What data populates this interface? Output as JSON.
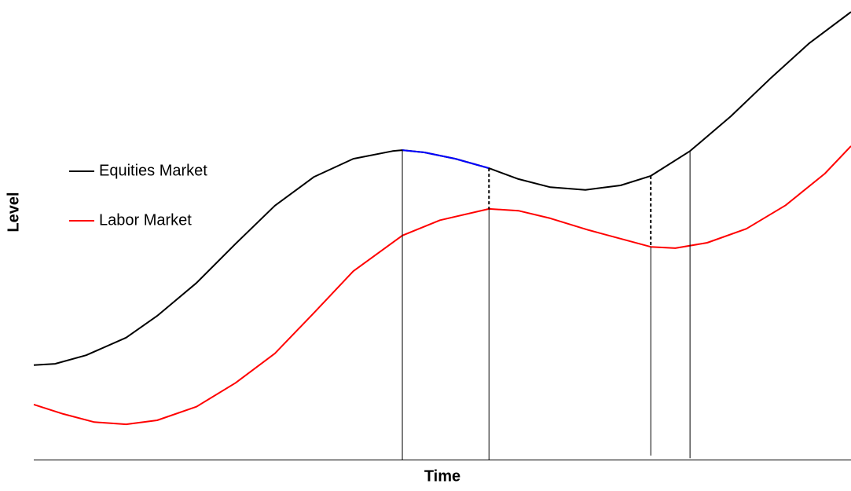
{
  "chart_data": {
    "type": "line",
    "x_label": "Time",
    "y_label": "Level",
    "xlim": [
      0,
      100
    ],
    "ylim": [
      0,
      100
    ],
    "legend": "center-left",
    "series": [
      {
        "name": "Equities Market",
        "color": "#000000",
        "x": [
          0,
          2.6,
          6.4,
          11.3,
          15.1,
          19.9,
          24.7,
          29.5,
          34.3,
          39.1,
          43.9,
          45.1,
          47.8,
          51.6,
          55.7,
          59.3,
          63.2,
          67.5,
          71.8,
          75.5,
          80.3,
          85.3,
          90.1,
          94.9,
          100
        ],
        "values": [
          20.9,
          21.2,
          23.1,
          27.0,
          31.8,
          39.1,
          47.8,
          56.2,
          62.6,
          66.6,
          68.3,
          68.5,
          68.0,
          66.6,
          64.5,
          62.1,
          60.3,
          59.7,
          60.7,
          62.8,
          68.3,
          76.0,
          84.3,
          92.2,
          99.1
        ]
      },
      {
        "color": "#0000ff",
        "x": [
          45.1,
          47.8,
          51.6,
          55.7
        ],
        "values": [
          68.5,
          68.0,
          66.6,
          64.5
        ]
      },
      {
        "name": "Labor Market",
        "color": "#ff0000",
        "x": [
          0,
          3.6,
          7.4,
          11.3,
          15.1,
          19.9,
          24.7,
          29.5,
          34.3,
          39.1,
          45.1,
          49.7,
          55.7,
          59.3,
          63.2,
          67.9,
          75.5,
          78.5,
          82.4,
          87.2,
          92.0,
          96.8,
          100
        ],
        "values": [
          12.2,
          10.1,
          8.3,
          7.8,
          8.7,
          11.7,
          17.0,
          23.5,
          32.5,
          41.7,
          49.6,
          53.0,
          55.5,
          55.1,
          53.4,
          50.8,
          47.1,
          46.8,
          48.0,
          51.1,
          56.3,
          63.3,
          69.4
        ]
      }
    ],
    "vlines": [
      {
        "x": 45.1,
        "y1": 68.5,
        "y2": 0,
        "style": "solid"
      },
      {
        "x": 55.7,
        "y1": 64.5,
        "y2": 55.5,
        "style": "dashed"
      },
      {
        "x": 55.7,
        "y1": 55.5,
        "y2": 0,
        "style": "solid"
      },
      {
        "x": 75.5,
        "y1": 62.8,
        "y2": 47.1,
        "style": "dashed"
      },
      {
        "x": 75.5,
        "y1": 47.1,
        "y2": 0.9,
        "style": "solid"
      },
      {
        "x": 80.3,
        "y1": 68.3,
        "y2": 0.3,
        "style": "solid"
      }
    ]
  }
}
